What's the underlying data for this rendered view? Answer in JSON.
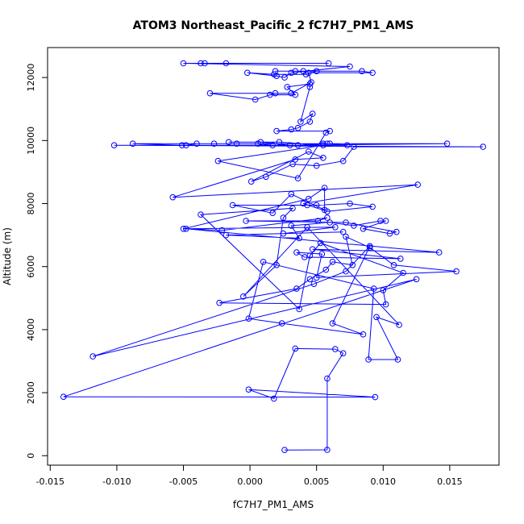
{
  "chart_data": {
    "type": "line",
    "title": "ATOM3 Northeast_Pacific_2 fC7H7_PM1_AMS",
    "xlabel": "fC7H7_PM1_AMS",
    "ylabel": "Altitude (m)",
    "xlim": [
      -0.0152,
      0.0187
    ],
    "ylim": [
      -300,
      12950
    ],
    "xticks": [
      -0.015,
      -0.01,
      -0.005,
      0.0,
      0.005,
      0.01,
      0.015
    ],
    "xtick_labels": [
      "-0.015",
      "-0.010",
      "-0.005",
      "0.000",
      "0.005",
      "0.010",
      "0.015"
    ],
    "yticks": [
      0,
      2000,
      4000,
      6000,
      8000,
      10000,
      12000
    ],
    "ytick_labels": [
      "0",
      "2000",
      "4000",
      "6000",
      "8000",
      "10000",
      "12000"
    ],
    "grid": false,
    "series": [
      {
        "color": "#0000ff",
        "marker": "open-circle",
        "points": [
          [
            0.0026,
            180
          ],
          [
            0.0058,
            185
          ],
          [
            0.0058,
            2450
          ],
          [
            0.007,
            3250
          ],
          [
            0.0064,
            3380
          ],
          [
            0.0034,
            3400
          ],
          [
            0.0018,
            1810
          ],
          [
            -0.0001,
            2100
          ],
          [
            0.0094,
            1860
          ],
          [
            -0.014,
            1870
          ],
          [
            0.0125,
            5600
          ],
          [
            -0.0118,
            3150
          ],
          [
            0.0048,
            5450
          ],
          [
            0.0072,
            5850
          ],
          [
            0.009,
            6650
          ],
          [
            0.0062,
            4200
          ],
          [
            0.0085,
            3850
          ],
          [
            0.0024,
            4200
          ],
          [
            -0.0001,
            4350
          ],
          [
            0.001,
            6150
          ],
          [
            0.0093,
            5300
          ],
          [
            0.0089,
            3050
          ],
          [
            0.0111,
            3050
          ],
          [
            0.0095,
            4400
          ],
          [
            0.0112,
            4150
          ],
          [
            0.0043,
            7250
          ],
          [
            -0.0005,
            5050
          ],
          [
            0.002,
            6050
          ],
          [
            0.0025,
            7550
          ],
          [
            0.0032,
            7850
          ],
          [
            -0.0037,
            7650
          ],
          [
            0.0037,
            4650
          ],
          [
            0.0045,
            6350
          ],
          [
            0.0053,
            6750
          ],
          [
            0.0115,
            5800
          ],
          [
            0.01,
            5250
          ],
          [
            0.0102,
            4800
          ],
          [
            -0.0023,
            4850
          ],
          [
            0.0035,
            5300
          ],
          [
            0.0045,
            5600
          ],
          [
            0.0057,
            5900
          ],
          [
            0.0062,
            6150
          ],
          [
            0.0077,
            6050
          ],
          [
            0.0072,
            6950
          ],
          [
            0.009,
            6600
          ],
          [
            0.0108,
            6050
          ],
          [
            0.0155,
            5850
          ],
          [
            0.005,
            5650
          ],
          [
            0.0054,
            6400
          ],
          [
            0.0035,
            6450
          ],
          [
            0.0041,
            6300
          ],
          [
            0.0113,
            6250
          ],
          [
            0.0047,
            6550
          ],
          [
            0.0142,
            6450
          ],
          [
            -0.0048,
            7200
          ],
          [
            0.0064,
            7250
          ],
          [
            0.0025,
            7050
          ],
          [
            0.007,
            7100
          ],
          [
            -0.0018,
            7000
          ],
          [
            0.0037,
            6900
          ],
          [
            0.0031,
            7300
          ],
          [
            0.006,
            7400
          ],
          [
            0.0078,
            7300
          ],
          [
            0.0098,
            7450
          ],
          [
            0.0102,
            7450
          ],
          [
            0.0085,
            7200
          ],
          [
            0.0105,
            7050
          ],
          [
            0.011,
            7100
          ],
          [
            0.0072,
            7400
          ],
          [
            -0.0003,
            7450
          ],
          [
            0.0051,
            7450
          ],
          [
            0.0058,
            7550
          ],
          [
            -0.0021,
            7150
          ],
          [
            -0.005,
            7200
          ],
          [
            0.0044,
            8150
          ],
          [
            0.0056,
            8500
          ],
          [
            0.0056,
            7800
          ],
          [
            0.0031,
            8300
          ],
          [
            0.0017,
            7700
          ],
          [
            -0.0013,
            7950
          ],
          [
            0.0043,
            7950
          ],
          [
            0.005,
            7950
          ],
          [
            0.0075,
            8000
          ],
          [
            0.0092,
            7900
          ],
          [
            0.0058,
            7750
          ],
          [
            0.004,
            8000
          ],
          [
            0.0126,
            8600
          ],
          [
            -0.0058,
            8200
          ],
          [
            0.0034,
            9400
          ],
          [
            0.0055,
            9450
          ],
          [
            0.0044,
            9650
          ],
          [
            0.0001,
            8700
          ],
          [
            0.0012,
            8850
          ],
          [
            0.0032,
            9250
          ],
          [
            0.005,
            9200
          ],
          [
            0.007,
            9350
          ],
          [
            0.0078,
            9800
          ],
          [
            0.0175,
            9800
          ],
          [
            -0.0102,
            9850
          ],
          [
            0.0073,
            9850
          ],
          [
            0.006,
            9900
          ],
          [
            -0.0088,
            9900
          ],
          [
            -0.0051,
            9850
          ],
          [
            -0.0048,
            9850
          ],
          [
            -0.004,
            9900
          ],
          [
            -0.0027,
            9900
          ],
          [
            -0.001,
            9900
          ],
          [
            0.0006,
            9900
          ],
          [
            0.0017,
            9850
          ],
          [
            0.0036,
            9850
          ],
          [
            0.0055,
            9900
          ],
          [
            0.0058,
            9900
          ],
          [
            0.0148,
            9900
          ],
          [
            0.003,
            9850
          ],
          [
            0.0008,
            9950
          ],
          [
            -0.0016,
            9950
          ],
          [
            0.0022,
            9950
          ],
          [
            0.0055,
            9850
          ],
          [
            -0.0024,
            9350
          ],
          [
            0.0036,
            8800
          ],
          [
            0.0057,
            10250
          ],
          [
            0.006,
            10300
          ],
          [
            0.002,
            10300
          ],
          [
            0.0031,
            10350
          ],
          [
            0.0036,
            10400
          ],
          [
            0.0045,
            10600
          ],
          [
            0.0047,
            10850
          ],
          [
            0.0038,
            10600
          ],
          [
            0.0045,
            11700
          ],
          [
            0.0045,
            11800
          ],
          [
            0.0028,
            11700
          ],
          [
            0.0034,
            11450
          ],
          [
            0.0015,
            11450
          ],
          [
            0.0019,
            11500
          ],
          [
            0.0004,
            11300
          ],
          [
            -0.003,
            11500
          ],
          [
            0.0031,
            11500
          ],
          [
            0.0046,
            11850
          ],
          [
            0.0044,
            12150
          ],
          [
            0.0092,
            12150
          ],
          [
            0.0084,
            12200
          ],
          [
            0.004,
            12200
          ],
          [
            0.0034,
            12200
          ],
          [
            0.0019,
            12200
          ],
          [
            0.005,
            12200
          ],
          [
            0.0042,
            12100
          ],
          [
            0.0018,
            12100
          ],
          [
            -0.0002,
            12150
          ],
          [
            0.002,
            12050
          ],
          [
            0.0026,
            12000
          ],
          [
            0.0031,
            12150
          ],
          [
            0.0075,
            12350
          ],
          [
            -0.005,
            12450
          ],
          [
            -0.0034,
            12450
          ],
          [
            -0.0037,
            12450
          ],
          [
            -0.0018,
            12450
          ],
          [
            0.0059,
            12450
          ]
        ]
      }
    ]
  }
}
